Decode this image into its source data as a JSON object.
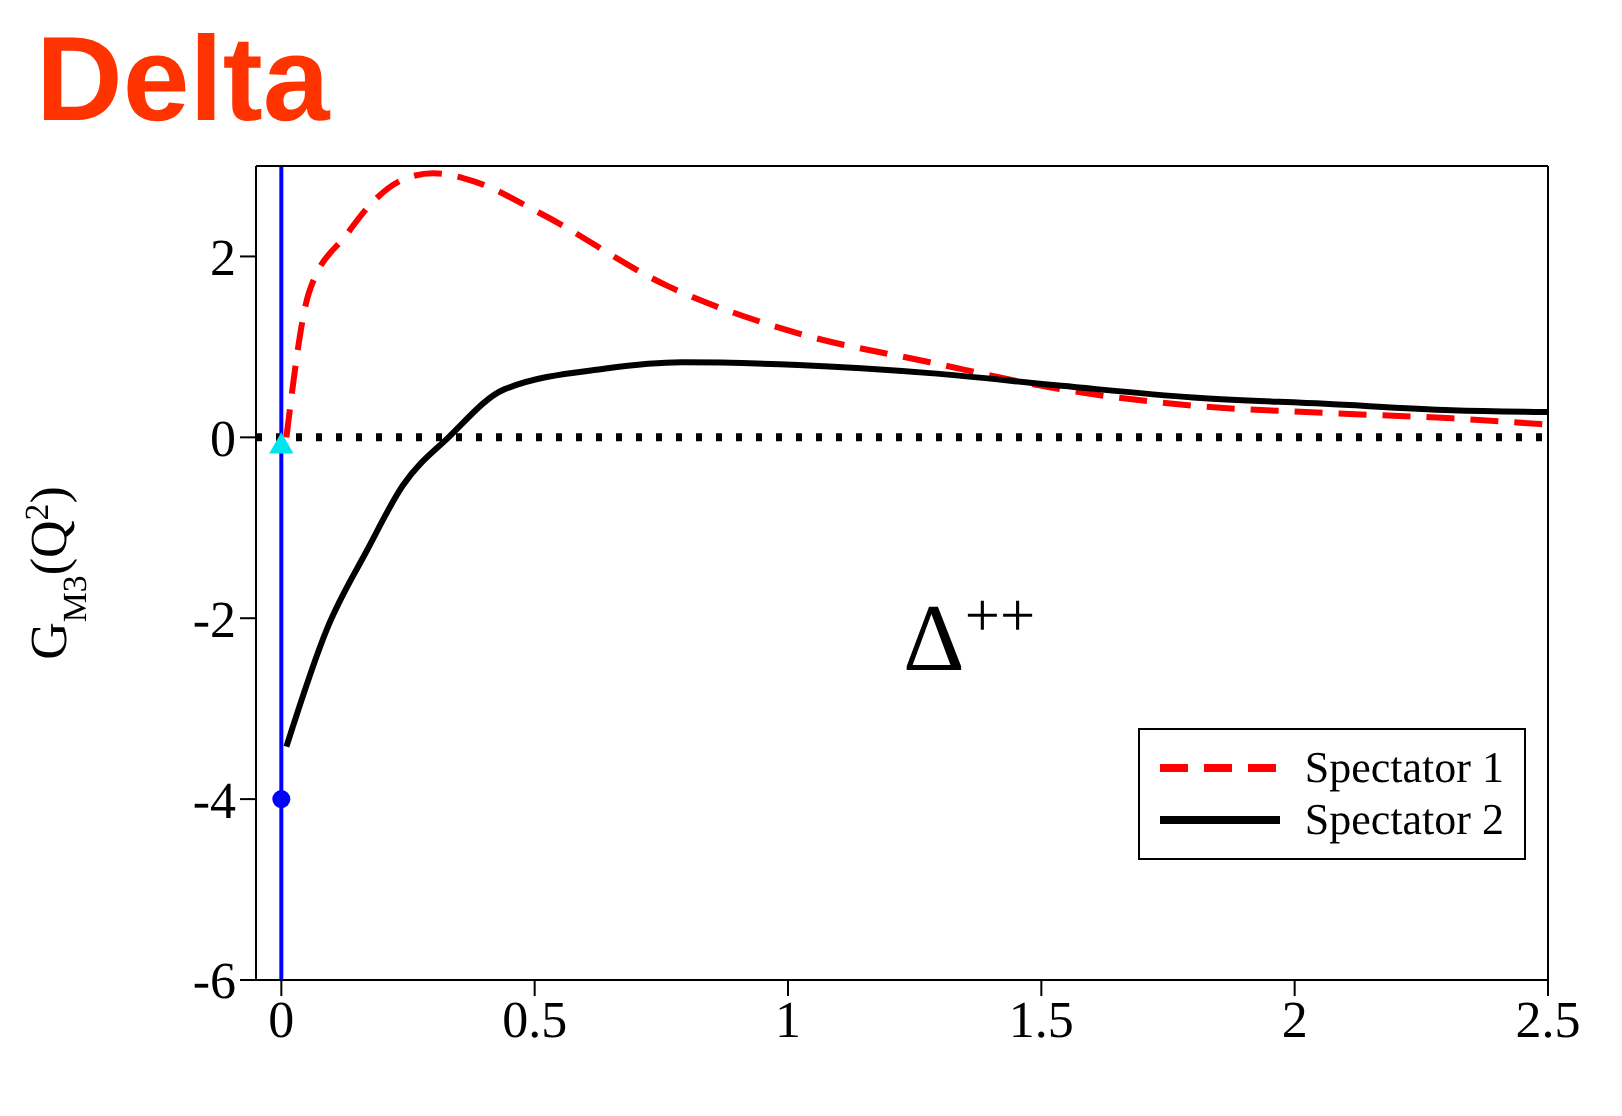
{
  "chart_data": {
    "type": "line",
    "title": "Delta",
    "ylabel": "G$_{M3}$(Q$^{2}$)",
    "annotations": [
      "Δ$^{++}$"
    ],
    "xlim": [
      -0.05,
      2.5
    ],
    "xticks": [
      0,
      0.5,
      1,
      1.5,
      2,
      2.5
    ],
    "ylim": [
      -6,
      3
    ],
    "yticks": [
      -6,
      -4,
      -2,
      0,
      2
    ],
    "legend": "bottom right",
    "marker": "none",
    "ref_lines": [
      {
        "axis": "y",
        "value": 0,
        "color": "#000000",
        "line_style": "dotted"
      },
      {
        "axis": "x",
        "value": 0,
        "color": "#0000ff",
        "line_style": "solid"
      }
    ],
    "series": [
      {
        "name": "Spectator 1",
        "color": "#ff0000",
        "line_style": "dashed",
        "x": [
          0.01,
          0.054,
          0.13,
          0.18,
          0.24,
          0.3,
          0.38,
          0.51,
          0.76,
          1.02,
          1.28,
          1.54,
          1.8,
          2.06,
          2.31,
          2.5
        ],
        "values": [
          0,
          1.59,
          2.25,
          2.6,
          2.85,
          2.92,
          2.83,
          2.48,
          1.68,
          1.15,
          0.83,
          0.53,
          0.35,
          0.27,
          0.21,
          0.14
        ]
      },
      {
        "name": "Spectator 2",
        "color": "#000000",
        "line_style": "solid",
        "x": [
          0.01,
          0.09,
          0.17,
          0.24,
          0.33,
          0.44,
          0.64,
          0.79,
          1.02,
          1.28,
          1.54,
          1.8,
          2.06,
          2.31,
          2.5
        ],
        "values": [
          -3.42,
          -2.12,
          -1.24,
          -0.53,
          0,
          0.53,
          0.76,
          0.83,
          0.8,
          0.71,
          0.57,
          0.44,
          0.37,
          0.3,
          0.28
        ]
      },
      {
        "type": "scatter",
        "color": "#0000ff",
        "marker": "circle",
        "x": [
          0
        ],
        "values": [
          -4
        ]
      },
      {
        "type": "scatter",
        "color": "#00e5ee",
        "marker": "triangle",
        "x": [
          0
        ],
        "values": [
          -0.1
        ]
      }
    ]
  }
}
